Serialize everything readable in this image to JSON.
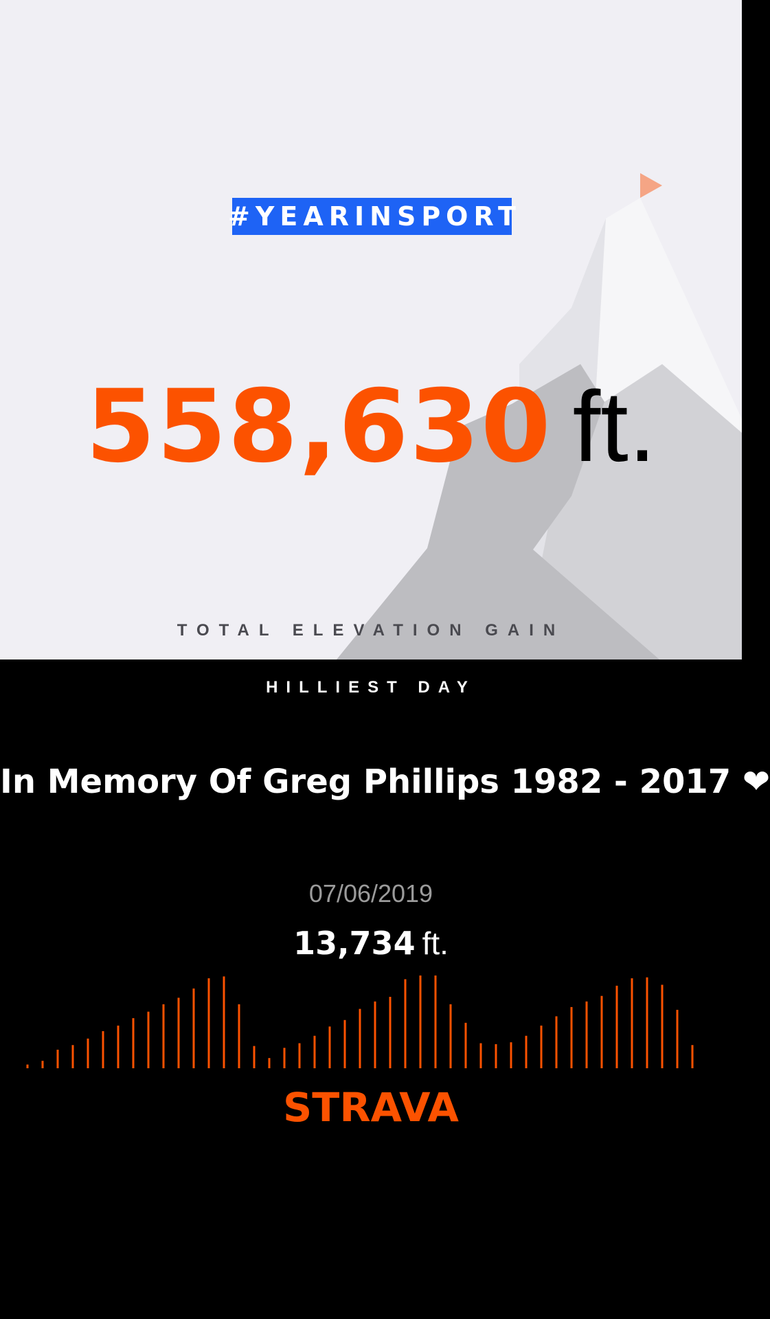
{
  "hashtag": "#YEARINSPORT",
  "total_elevation": {
    "value": "558,630",
    "unit": "ft.",
    "label": "TOTAL ELEVATION GAIN"
  },
  "hilliest_day": {
    "label": "HILLIEST DAY",
    "activity_name": "In Memory Of Greg Phillips 1982 - 2017 ❤",
    "date": "07/06/2019",
    "elevation_value": "13,734",
    "elevation_unit": "ft."
  },
  "brand": {
    "name": "STRAVA",
    "color": "#fc5200"
  },
  "colors": {
    "accent": "#fc5200",
    "hashtag_bg": "#1e63f5",
    "top_bg": "#f0eff4",
    "bottom_bg": "#000000"
  },
  "chart_data": {
    "type": "bar",
    "values": [
      0.04,
      0.08,
      0.2,
      0.25,
      0.32,
      0.4,
      0.46,
      0.54,
      0.61,
      0.69,
      0.76,
      0.86,
      0.97,
      0.99,
      0.69,
      0.24,
      0.11,
      0.22,
      0.27,
      0.35,
      0.45,
      0.52,
      0.64,
      0.72,
      0.77,
      0.96,
      1.0,
      1.0,
      0.69,
      0.49,
      0.27,
      0.26,
      0.28,
      0.35,
      0.46,
      0.56,
      0.66,
      0.72,
      0.78,
      0.89,
      0.97,
      0.98,
      0.9,
      0.63,
      0.25
    ]
  }
}
